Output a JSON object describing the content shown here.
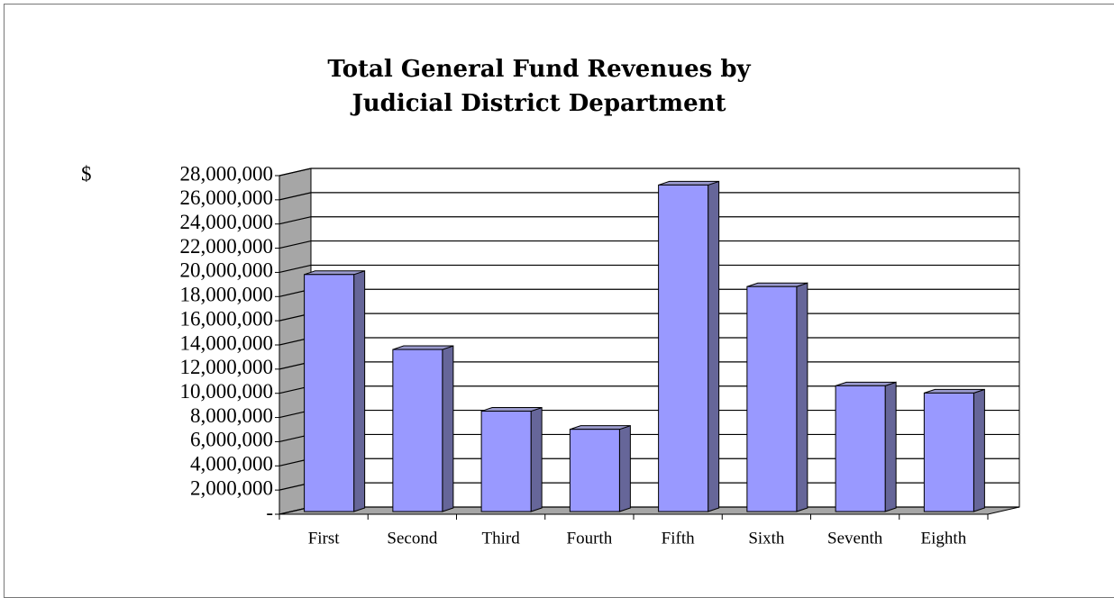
{
  "chart_data": {
    "type": "bar3d",
    "title": "Total General Fund Revenues by\nJudicial District Department",
    "ylabel": "$",
    "categories": [
      "First",
      "Second",
      "Third",
      "Fourth",
      "Fifth",
      "Sixth",
      "Seventh",
      "Eighth"
    ],
    "values": [
      19600000,
      13400000,
      8300000,
      6800000,
      27000000,
      18600000,
      10400000,
      9800000
    ],
    "color": "#9999ff",
    "ylim": [
      0,
      28000000
    ],
    "yticks": [
      {
        "value": 0,
        "label": "-"
      },
      {
        "value": 2000000,
        "label": "2,000,000"
      },
      {
        "value": 4000000,
        "label": "4,000,000"
      },
      {
        "value": 6000000,
        "label": "6,000,000"
      },
      {
        "value": 8000000,
        "label": "8,000,000"
      },
      {
        "value": 10000000,
        "label": "10,000,000"
      },
      {
        "value": 12000000,
        "label": "12,000,000"
      },
      {
        "value": 14000000,
        "label": "14,000,000"
      },
      {
        "value": 16000000,
        "label": "16,000,000"
      },
      {
        "value": 18000000,
        "label": "18,000,000"
      },
      {
        "value": 20000000,
        "label": "20,000,000"
      },
      {
        "value": 22000000,
        "label": "22,000,000"
      },
      {
        "value": 24000000,
        "label": "24,000,000"
      },
      {
        "value": 26000000,
        "label": "26,000,000"
      },
      {
        "value": 28000000,
        "label": "28,000,000"
      }
    ],
    "grid": true
  }
}
